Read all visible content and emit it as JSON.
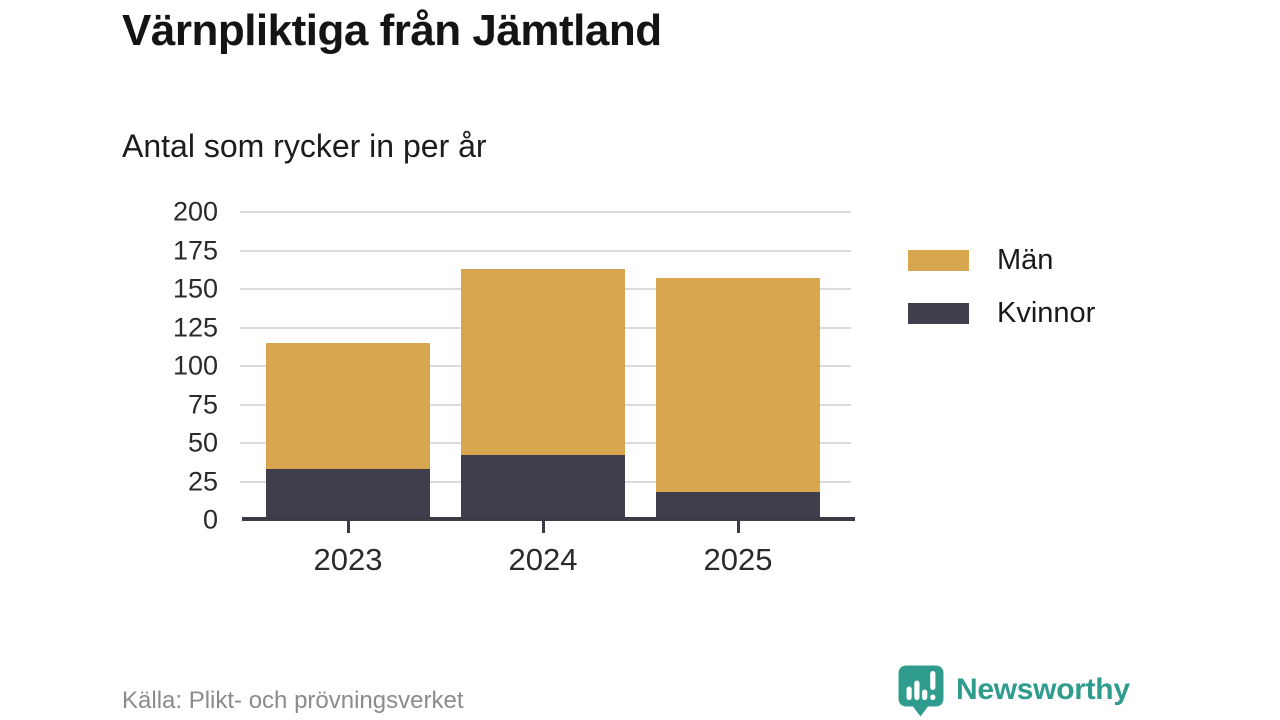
{
  "header": {
    "title": "Värnpliktiga från Jämtland",
    "subtitle": "Antal som rycker in per år"
  },
  "chart_data": {
    "type": "bar",
    "stacked": true,
    "title": "Värnpliktiga från Jämtland",
    "subtitle": "Antal som rycker in per år",
    "categories": [
      "2023",
      "2024",
      "2025"
    ],
    "series": [
      {
        "name": "Kvinnor",
        "color": "#403D4D",
        "values": [
          33,
          42,
          18
        ]
      },
      {
        "name": "Män",
        "color": "#D8A64F",
        "values": [
          82,
          121,
          139
        ]
      }
    ],
    "totals": [
      115,
      163,
      157
    ],
    "xlabel": "",
    "ylabel": "",
    "ylim": [
      0,
      200
    ],
    "yticks": [
      0,
      25,
      50,
      75,
      100,
      125,
      150,
      175,
      200
    ],
    "grid": true,
    "legend_position": "right"
  },
  "legend": {
    "items": [
      {
        "label": "Män",
        "color": "#D8A64F"
      },
      {
        "label": "Kvinnor",
        "color": "#403D4D"
      }
    ]
  },
  "footer": {
    "source": "Källa: Plikt- och prövningsverket",
    "brand": "Newsworthy"
  },
  "colors": {
    "men_gold": "#D8A64F",
    "women_dark": "#403D4D",
    "brand_teal": "#2F9C8E",
    "gridline": "#DBDBDB",
    "axis": "#3B3A45",
    "source_text": "#8B8B8B"
  }
}
